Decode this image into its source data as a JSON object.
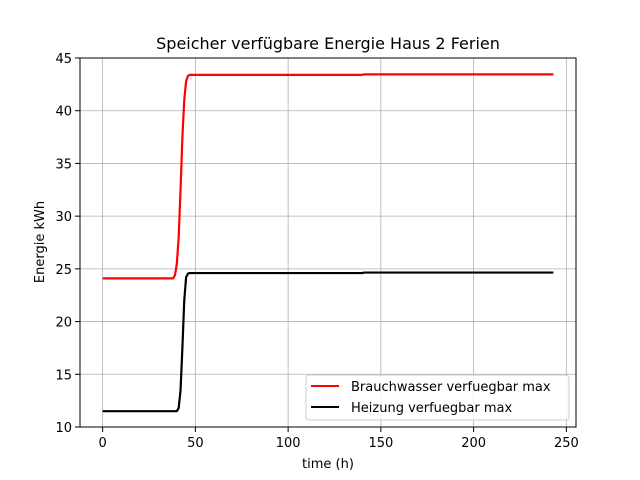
{
  "chart_data": {
    "type": "line",
    "title": "Speicher verfügbare Energie Haus 2 Ferien",
    "xlabel": "time (h)",
    "ylabel": "Energie kWh",
    "xlim": [
      -12.2,
      255.2
    ],
    "ylim": [
      10,
      45
    ],
    "xticks": [
      0,
      50,
      100,
      150,
      200,
      250
    ],
    "yticks": [
      10,
      15,
      20,
      25,
      30,
      35,
      40,
      45
    ],
    "grid": true,
    "legend_position": "lower-right",
    "series": [
      {
        "name": "Brauchwasser verfuegbar max",
        "color": "#ff0000",
        "x": [
          0,
          38,
          39,
          40,
          41,
          42,
          43,
          44,
          45,
          46,
          47,
          48,
          60,
          100,
          140,
          141,
          200,
          243
        ],
        "y": [
          24.1,
          24.1,
          24.4,
          25.5,
          28.0,
          32.5,
          37.5,
          41.0,
          42.8,
          43.3,
          43.4,
          43.4,
          43.4,
          43.4,
          43.4,
          43.45,
          43.45,
          43.45
        ]
      },
      {
        "name": "Heizung verfuegbar max",
        "color": "#000000",
        "x": [
          0,
          40,
          41,
          42,
          43,
          44,
          45,
          46,
          47,
          48,
          60,
          100,
          140,
          141,
          200,
          243
        ],
        "y": [
          11.5,
          11.5,
          11.8,
          13.5,
          17.5,
          22.0,
          24.2,
          24.55,
          24.6,
          24.6,
          24.6,
          24.6,
          24.6,
          24.65,
          24.65,
          24.65
        ]
      }
    ]
  }
}
